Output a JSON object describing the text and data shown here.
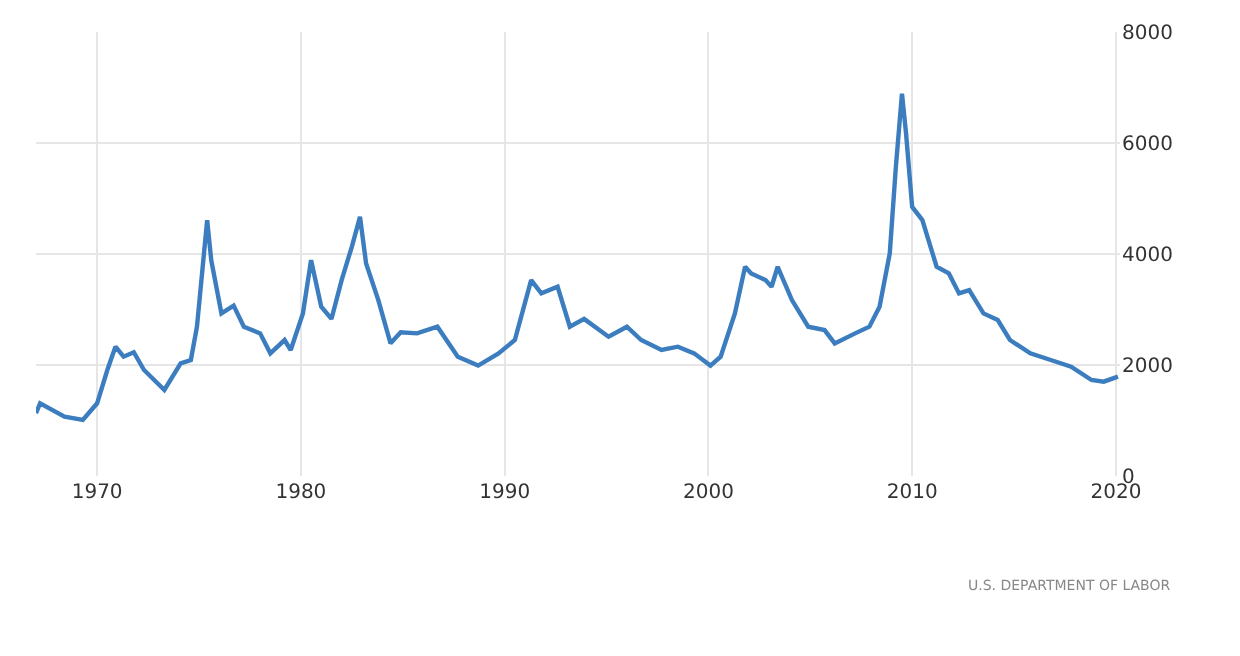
{
  "chart_data": {
    "type": "line",
    "x": [
      1967.0,
      1967.2,
      1968.4,
      1969.3,
      1970.0,
      1970.5,
      1970.9,
      1971.3,
      1971.8,
      1972.3,
      1973.3,
      1974.1,
      1974.6,
      1974.9,
      1975.4,
      1975.6,
      1976.1,
      1976.7,
      1977.2,
      1978.0,
      1978.5,
      1979.2,
      1979.5,
      1980.1,
      1980.5,
      1981.0,
      1981.5,
      1982.0,
      1982.5,
      1982.9,
      1983.2,
      1983.8,
      1984.4,
      1984.9,
      1985.7,
      1986.7,
      1987.7,
      1988.7,
      1989.7,
      1990.5,
      1991.3,
      1991.8,
      1992.6,
      1993.2,
      1993.9,
      1995.1,
      1996.0,
      1996.7,
      1997.7,
      1998.5,
      1999.3,
      2000.1,
      2000.6,
      2001.3,
      2001.8,
      2002.1,
      2002.8,
      2003.1,
      2003.4,
      2004.1,
      2004.9,
      2005.7,
      2006.2,
      2007.2,
      2007.9,
      2008.4,
      2008.9,
      2009.2,
      2009.5,
      2009.7,
      2010.0,
      2010.5,
      2011.2,
      2011.8,
      2012.3,
      2012.8,
      2013.5,
      2014.2,
      2014.8,
      2015.8,
      2016.8,
      2017.8,
      2018.8,
      2019.4,
      2020.1
    ],
    "series": [
      {
        "color": "#3b7dbf",
        "values": [
          1130,
          1310,
          1070,
          1010,
          1310,
          1910,
          2330,
          2150,
          2230,
          1910,
          1550,
          2030,
          2090,
          2690,
          4610,
          3890,
          2930,
          3070,
          2690,
          2570,
          2210,
          2450,
          2270,
          2930,
          3890,
          3050,
          2830,
          3530,
          4130,
          4670,
          3830,
          3170,
          2390,
          2590,
          2570,
          2690,
          2150,
          1990,
          2210,
          2450,
          3530,
          3290,
          3410,
          2690,
          2830,
          2510,
          2690,
          2450,
          2270,
          2330,
          2210,
          1990,
          2150,
          2930,
          3770,
          3650,
          3530,
          3410,
          3770,
          3170,
          2690,
          2630,
          2390,
          2570,
          2690,
          3050,
          4010,
          5570,
          6890,
          6170,
          4850,
          4610,
          3770,
          3650,
          3290,
          3350,
          2930,
          2810,
          2450,
          2210,
          2090,
          1970,
          1730,
          1700,
          1790
        ]
      }
    ],
    "xlim": [
      1967,
      2020.2
    ],
    "xticks": [
      1970,
      1980,
      1990,
      2000,
      2010,
      2020
    ],
    "ylim": [
      0,
      8000
    ],
    "yticks": [
      0,
      2000,
      4000,
      6000,
      8000
    ],
    "grid": true,
    "marker": "none",
    "line_style": "solid",
    "annotations": [
      "U.S. DEPARTMENT OF LABOR"
    ]
  }
}
